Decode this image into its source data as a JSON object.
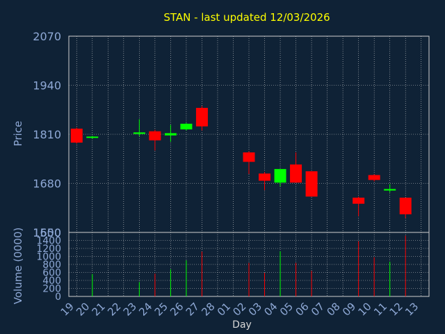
{
  "chart_data": {
    "type": "candlestick",
    "title": "STAN - last updated 12/03/2026",
    "xlabel": "Day",
    "colors": {
      "background": "#0f2236",
      "up": "#00ff00",
      "down": "#ff0000",
      "grid": "#d0d0d0",
      "title": "#ffff00",
      "axis_text": "#8fa9d6"
    },
    "x_ticks": [
      "19",
      "20",
      "21",
      "22",
      "23",
      "24",
      "25",
      "26",
      "27",
      "28",
      "01",
      "02",
      "03",
      "04",
      "05",
      "06",
      "07",
      "08",
      "09",
      "10",
      "11",
      "12",
      "13"
    ],
    "price": {
      "ylabel": "Price",
      "ylim": [
        1550,
        2070
      ],
      "y_ticks": [
        2070,
        1940,
        1810,
        1680,
        1550
      ],
      "candles": [
        {
          "x": "19",
          "open": 1825,
          "high": 1828,
          "low": 1785,
          "close": 1788
        },
        {
          "x": "20",
          "open": 1801,
          "high": 1806,
          "low": 1798,
          "close": 1804
        },
        {
          "x": "23",
          "open": 1811,
          "high": 1850,
          "low": 1805,
          "close": 1815
        },
        {
          "x": "24",
          "open": 1818,
          "high": 1822,
          "low": 1767,
          "close": 1794
        },
        {
          "x": "25",
          "open": 1807,
          "high": 1835,
          "low": 1790,
          "close": 1813
        },
        {
          "x": "26",
          "open": 1823,
          "high": 1840,
          "low": 1820,
          "close": 1838
        },
        {
          "x": "27",
          "open": 1880,
          "high": 1885,
          "low": 1820,
          "close": 1831
        },
        {
          "x": "02",
          "open": 1762,
          "high": 1765,
          "low": 1705,
          "close": 1737
        },
        {
          "x": "03",
          "open": 1706,
          "high": 1710,
          "low": 1662,
          "close": 1687
        },
        {
          "x": "04",
          "open": 1682,
          "high": 1718,
          "low": 1672,
          "close": 1718
        },
        {
          "x": "05",
          "open": 1730,
          "high": 1762,
          "low": 1682,
          "close": 1682
        },
        {
          "x": "06",
          "open": 1712,
          "high": 1712,
          "low": 1645,
          "close": 1645
        },
        {
          "x": "09",
          "open": 1642,
          "high": 1645,
          "low": 1593,
          "close": 1626
        },
        {
          "x": "10",
          "open": 1702,
          "high": 1704,
          "low": 1685,
          "close": 1689
        },
        {
          "x": "11",
          "open": 1661,
          "high": 1678,
          "low": 1656,
          "close": 1665
        },
        {
          "x": "12",
          "open": 1642,
          "high": 1642,
          "low": 1588,
          "close": 1598
        }
      ]
    },
    "volume": {
      "ylabel": "Volume (0000)",
      "ylim": [
        0,
        1600
      ],
      "y_ticks": [
        1600,
        1400,
        1200,
        1000,
        800,
        600,
        400,
        200,
        0
      ],
      "bars": [
        {
          "x": "20",
          "value": 560,
          "up": true
        },
        {
          "x": "23",
          "value": 360,
          "up": true
        },
        {
          "x": "24",
          "value": 570,
          "up": false
        },
        {
          "x": "25",
          "value": 680,
          "up": true
        },
        {
          "x": "26",
          "value": 900,
          "up": true
        },
        {
          "x": "27",
          "value": 1120,
          "up": false
        },
        {
          "x": "02",
          "value": 840,
          "up": false
        },
        {
          "x": "03",
          "value": 590,
          "up": false
        },
        {
          "x": "04",
          "value": 1130,
          "up": true
        },
        {
          "x": "05",
          "value": 840,
          "up": false
        },
        {
          "x": "06",
          "value": 640,
          "up": false
        },
        {
          "x": "09",
          "value": 1380,
          "up": false
        },
        {
          "x": "10",
          "value": 980,
          "up": false
        },
        {
          "x": "11",
          "value": 870,
          "up": true
        },
        {
          "x": "12",
          "value": 1520,
          "up": false
        }
      ]
    }
  }
}
